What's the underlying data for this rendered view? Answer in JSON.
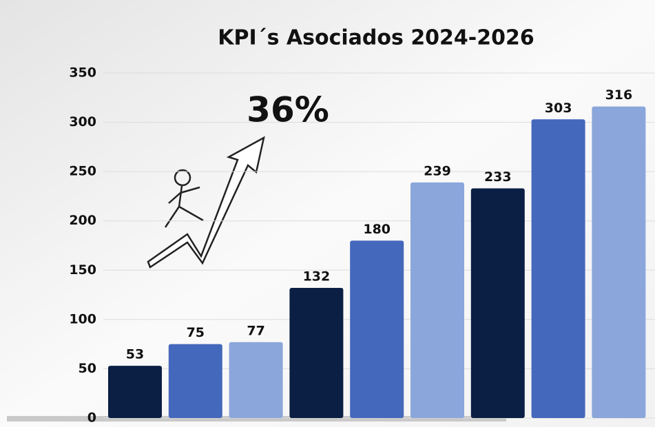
{
  "chart_data": {
    "type": "bar",
    "title": "KPI´s Asociados 2024-2026",
    "annotation": "36%",
    "values": [
      53,
      75,
      77,
      132,
      180,
      239,
      233,
      303,
      316
    ],
    "colors": [
      "#0b1f45",
      "#4468bb",
      "#8ba6da",
      "#0b1f45",
      "#4468bb",
      "#8ba6da",
      "#0b1f45",
      "#4468bb",
      "#8ba6da"
    ],
    "ylim": [
      0,
      350
    ],
    "yticks": [
      0,
      50,
      100,
      150,
      200,
      250,
      300,
      350
    ],
    "grid": true
  }
}
